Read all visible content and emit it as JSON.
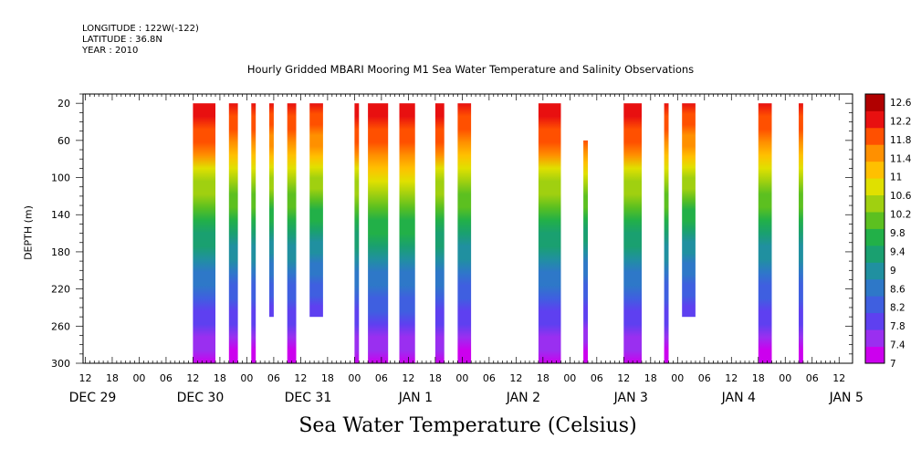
{
  "header": {
    "longitude": "LONGITUDE : 122W(-122)",
    "latitude": "LATITUDE : 36.8N",
    "year": "YEAR : 2010"
  },
  "chart_data": {
    "type": "heatmap",
    "title": "Hourly Gridded MBARI Mooring M1 Sea Water Temperature and Salinity Observations",
    "xlabel": "Sea Water Temperature (Celsius)",
    "ylabel": "DEPTH (m)",
    "x_unit": "hours since DEC 29 12:00",
    "xlim": [
      -0.5,
      171
    ],
    "ylim": [
      300,
      10
    ],
    "y_reversed": true,
    "yticks": [
      20,
      60,
      100,
      140,
      180,
      220,
      260,
      300
    ],
    "hour_tick_labels": [
      "12",
      "18",
      "00",
      "06",
      "12",
      "18",
      "00",
      "06",
      "12",
      "18",
      "00",
      "06",
      "12",
      "18",
      "00",
      "06",
      "12",
      "18",
      "00",
      "06",
      "12",
      "18",
      "00",
      "06",
      "12",
      "18",
      "00",
      "06",
      "12"
    ],
    "day_labels": [
      {
        "label": "DEC 29",
        "x": 0
      },
      {
        "label": "DEC 30",
        "x": 24
      },
      {
        "label": "DEC 31",
        "x": 48
      },
      {
        "label": "JAN  1",
        "x": 72
      },
      {
        "label": "JAN  2",
        "x": 96
      },
      {
        "label": "JAN  3",
        "x": 120
      },
      {
        "label": "JAN  4",
        "x": 144
      },
      {
        "label": "JAN  5",
        "x": 168
      }
    ],
    "colorbar": {
      "min": 7,
      "max": 12.8,
      "labels": [
        "12.6",
        "12.2",
        "11.8",
        "11.4",
        "11",
        "10.6",
        "10.2",
        "9.8",
        "9.4",
        "9",
        "8.6",
        "8.2",
        "7.8",
        "7.4",
        "7"
      ],
      "colors": [
        "#cc00ee",
        "#9a2ff0",
        "#5e40f0",
        "#3f5fe0",
        "#2e78c8",
        "#2090a0",
        "#1aa070",
        "#22b048",
        "#5cc020",
        "#a0d010",
        "#e0e000",
        "#ffc000",
        "#ff9000",
        "#ff5000",
        "#e81010",
        "#b00000"
      ]
    },
    "segments": [
      {
        "x0": 24.0,
        "x1": 29.0,
        "depth_top": 20,
        "depth_bottom": 300,
        "warm_depth": 70,
        "cool": 0.0
      },
      {
        "x0": 32.0,
        "x1": 34.0,
        "depth_top": 20,
        "depth_bottom": 300,
        "warm_depth": 70,
        "cool": 0.1
      },
      {
        "x0": 37.0,
        "x1": 38.0,
        "depth_top": 20,
        "depth_bottom": 300,
        "warm_depth": 70,
        "cool": 0.1
      },
      {
        "x0": 41.0,
        "x1": 42.0,
        "depth_top": 20,
        "depth_bottom": 250,
        "warm_depth": 70,
        "cool": 0.2
      },
      {
        "x0": 45.0,
        "x1": 47.0,
        "depth_top": 20,
        "depth_bottom": 300,
        "warm_depth": 70,
        "cool": 0.1
      },
      {
        "x0": 50.0,
        "x1": 53.0,
        "depth_top": 20,
        "depth_bottom": 250,
        "warm_depth": 70,
        "cool": 0.2
      },
      {
        "x0": 60.0,
        "x1": 61.0,
        "depth_top": 20,
        "depth_bottom": 300,
        "warm_depth": 70,
        "cool": 0.0
      },
      {
        "x0": 63.0,
        "x1": 67.5,
        "depth_top": 20,
        "depth_bottom": 300,
        "warm_depth": 70,
        "cool": -0.1
      },
      {
        "x0": 70.0,
        "x1": 73.5,
        "depth_top": 20,
        "depth_bottom": 300,
        "warm_depth": 70,
        "cool": -0.1
      },
      {
        "x0": 78.0,
        "x1": 80.0,
        "depth_top": 20,
        "depth_bottom": 300,
        "warm_depth": 70,
        "cool": 0.0
      },
      {
        "x0": 83.0,
        "x1": 86.0,
        "depth_top": 20,
        "depth_bottom": 300,
        "warm_depth": 70,
        "cool": 0.1
      },
      {
        "x0": 101.0,
        "x1": 106.0,
        "depth_top": 20,
        "depth_bottom": 300,
        "warm_depth": 70,
        "cool": 0.0
      },
      {
        "x0": 111.0,
        "x1": 112.0,
        "depth_top": 60,
        "depth_bottom": 300,
        "warm_depth": 70,
        "cool": 0.1
      },
      {
        "x0": 120.0,
        "x1": 124.0,
        "depth_top": 20,
        "depth_bottom": 300,
        "warm_depth": 70,
        "cool": 0.0
      },
      {
        "x0": 129.0,
        "x1": 130.0,
        "depth_top": 20,
        "depth_bottom": 300,
        "warm_depth": 70,
        "cool": 0.1
      },
      {
        "x0": 133.0,
        "x1": 136.0,
        "depth_top": 20,
        "depth_bottom": 250,
        "warm_depth": 70,
        "cool": 0.2
      },
      {
        "x0": 150.0,
        "x1": 153.0,
        "depth_top": 20,
        "depth_bottom": 300,
        "warm_depth": 70,
        "cool": 0.1
      },
      {
        "x0": 159.0,
        "x1": 160.0,
        "depth_top": 20,
        "depth_bottom": 300,
        "warm_depth": 70,
        "cool": 0.1
      }
    ]
  }
}
